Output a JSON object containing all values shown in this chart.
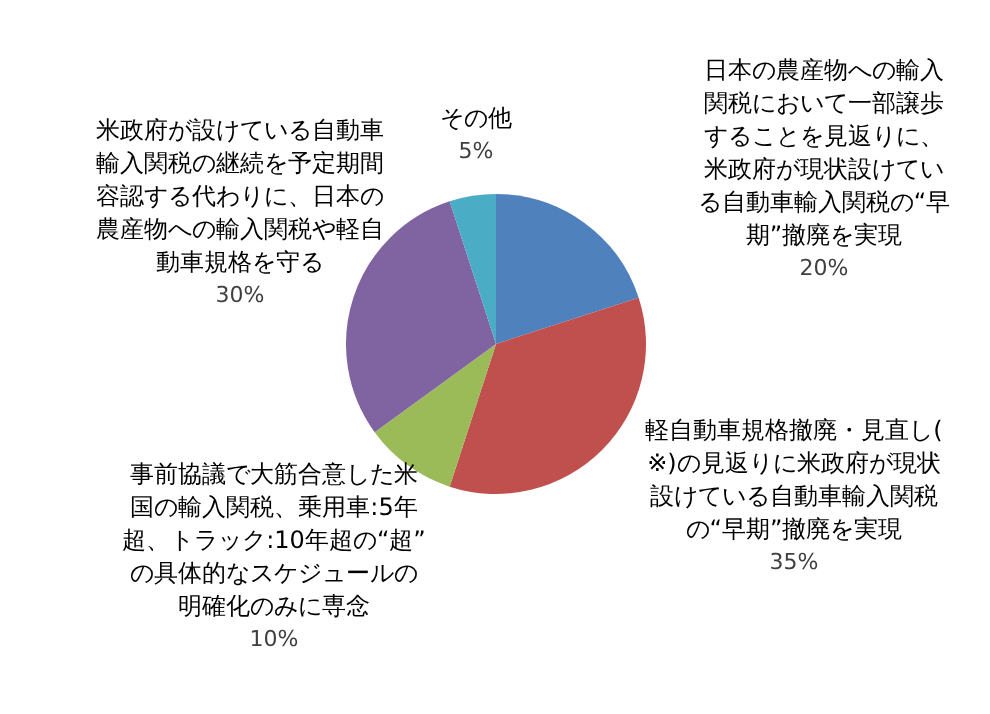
{
  "chart_data": {
    "type": "pie",
    "categories": [
      "日本の農産物への輸入関税において一部譲歩することを見返りに、米政府が現状設けている自動車輸入関税の“早期”撤廃を実現",
      "軽自動車規格撤廃・見直し(※)の見返りに米政府が現状設けている自動車輸入関税の“早期”撤廃を実現",
      "事前協議で大筋合意した米国の輸入関税、乗用車:5年超、トラック:10年超の“超”の具体的なスケジュールの明確化のみに専念",
      "米政府が設けている自動車輸入関税の継続を予定期間容認する代わりに、日本の農産物への輸入関税や軽自動車規格を守る",
      "その他"
    ],
    "values": [
      20,
      35,
      10,
      30,
      5
    ],
    "colors": [
      "#4f81bd",
      "#c0504d",
      "#9bbb59",
      "#8064a2",
      "#4bacc6"
    ],
    "value_labels": [
      "20%",
      "35%",
      "10%",
      "30%",
      "5%"
    ],
    "legend": false
  }
}
